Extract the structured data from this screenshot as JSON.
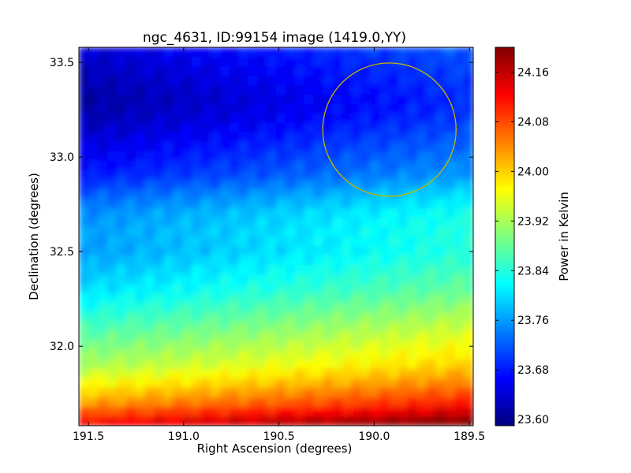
{
  "chart_data": {
    "type": "heatmap",
    "title": "ngc_4631, ID:99154 image (1419.0,YY)",
    "xlabel": "Right Ascension (degrees)",
    "ylabel": "Declination (degrees)",
    "xlim": [
      191.55,
      189.48
    ],
    "ylim": [
      31.58,
      33.58
    ],
    "x_ticks": [
      191.5,
      191.0,
      190.5,
      190.0,
      189.5
    ],
    "x_tick_labels": [
      "191.5",
      "191.0",
      "190.5",
      "190.0",
      "189.5"
    ],
    "y_ticks": [
      32.0,
      32.5,
      33.0,
      33.5
    ],
    "y_tick_labels": [
      "32.0",
      "32.5",
      "33.0",
      "33.5"
    ],
    "colorbar": {
      "label": "Power in Kelvin",
      "colormap": "jet",
      "range": [
        23.59,
        24.2
      ],
      "ticks": [
        23.6,
        23.68,
        23.76,
        23.84,
        23.92,
        24.0,
        24.08,
        24.16
      ],
      "tick_labels": [
        "23.60",
        "23.68",
        "23.76",
        "23.84",
        "23.92",
        "24.00",
        "24.08",
        "24.16"
      ]
    },
    "dec_profile": {
      "dec": [
        31.6,
        31.7,
        31.8,
        31.9,
        32.0,
        32.1,
        32.2,
        32.3,
        32.4,
        32.5,
        32.6,
        32.7,
        32.8,
        32.9,
        33.0,
        33.1,
        33.2,
        33.3,
        33.4,
        33.5,
        33.57
      ],
      "power": [
        24.16,
        24.07,
        24.01,
        23.96,
        23.93,
        23.9,
        23.87,
        23.84,
        23.82,
        23.8,
        23.8,
        23.79,
        23.76,
        23.72,
        23.7,
        23.68,
        23.66,
        23.65,
        23.66,
        23.67,
        23.68
      ]
    },
    "ra_gradient": {
      "ra_offset_per_degree_east": -0.04
    },
    "circle_annotation": {
      "ra": 189.92,
      "dec": 33.145,
      "radius_deg": 0.35,
      "color": "#c8b400"
    },
    "grid": false
  },
  "colors": {
    "background": "#ffffff",
    "axes": "#000000",
    "circle": "#c8b400"
  }
}
